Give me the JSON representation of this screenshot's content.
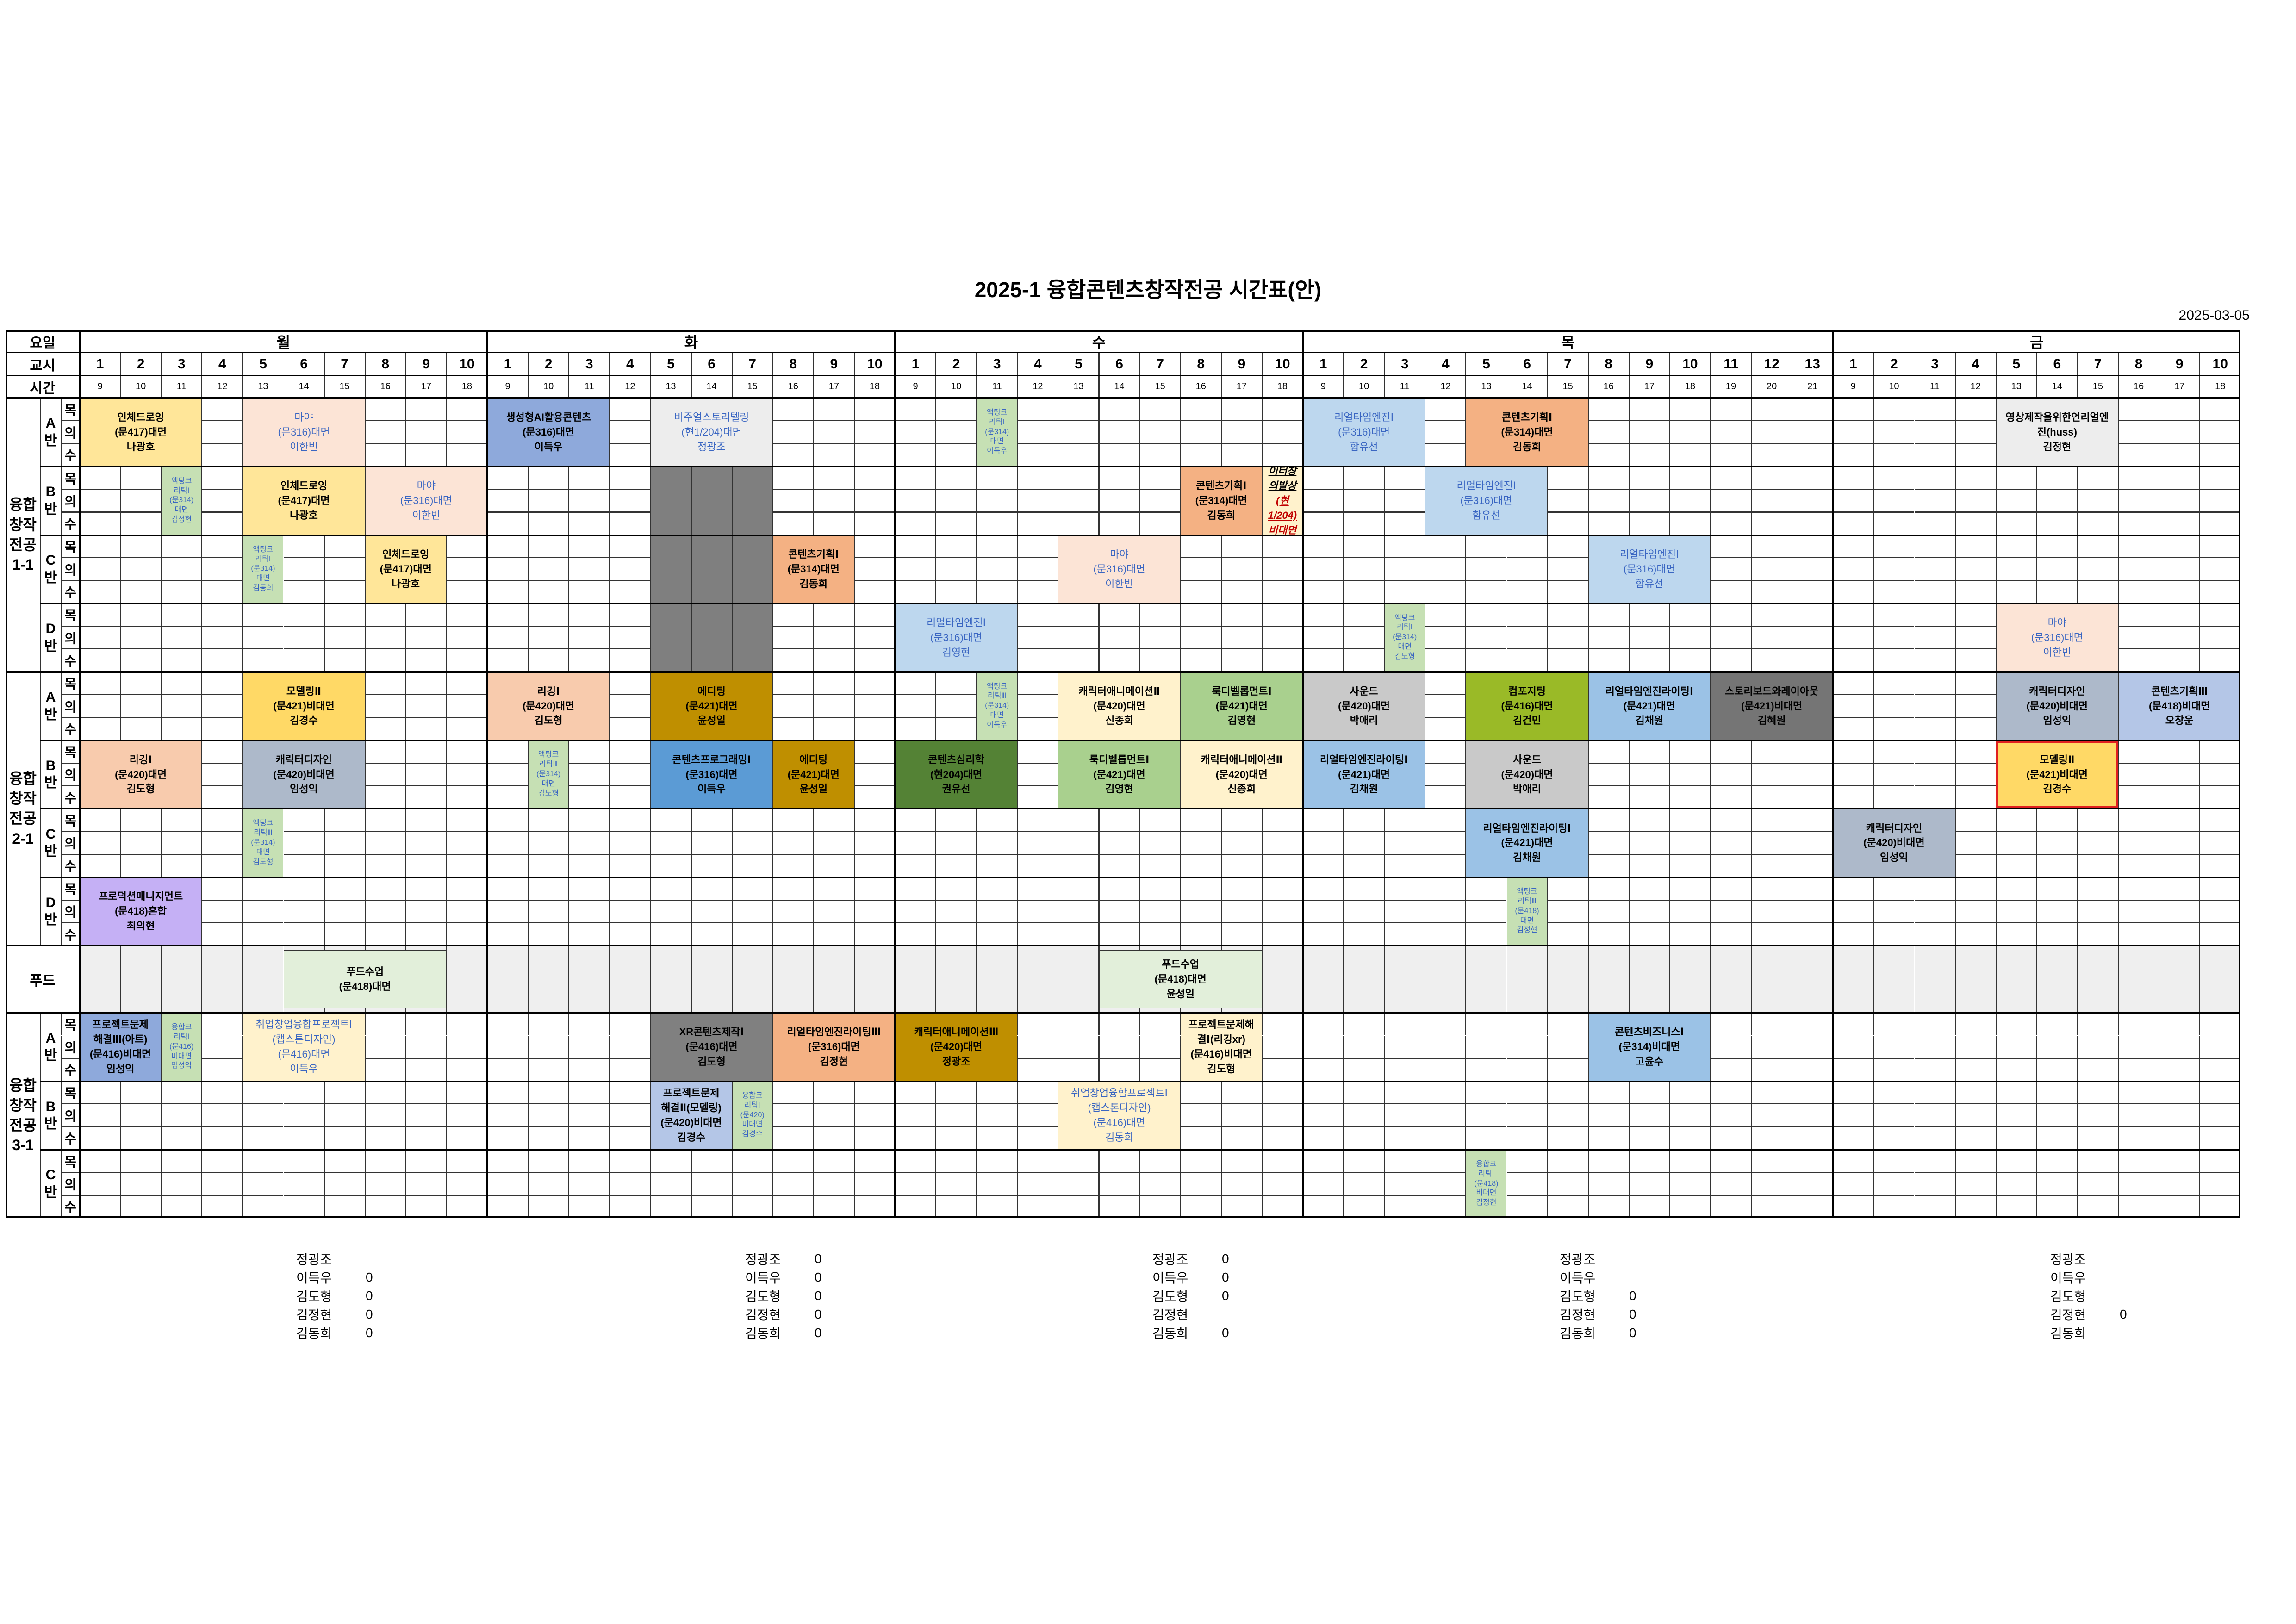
{
  "title": "2025-1 융합콘텐츠창작전공 시간표(안)",
  "date": "2025-03-05",
  "header": {
    "day_label": "요일",
    "period_label": "교시",
    "time_label": "시간"
  },
  "row_types": [
    "과목명",
    "강의실",
    "교수명"
  ],
  "days": [
    {
      "name": "월",
      "periods": 10
    },
    {
      "name": "화",
      "periods": 10
    },
    {
      "name": "수",
      "periods": 10
    },
    {
      "name": "목",
      "periods": 13
    },
    {
      "name": "금",
      "periods": 10
    }
  ],
  "times": [
    "9",
    "10",
    "11",
    "12",
    "13",
    "14",
    "15",
    "16",
    "17",
    "18",
    "19",
    "20",
    "21"
  ],
  "classes": [
    {
      "label": "융합\n창작\n전공\n1-1",
      "bans": [
        "A\n반",
        "B\n반",
        "C\n반",
        "D\n반"
      ]
    },
    {
      "label": "융합\n창작\n전공\n2-1",
      "bans": [
        "A\n반",
        "B\n반",
        "C\n반",
        "D\n반"
      ]
    },
    {
      "label": "푸드",
      "bans": []
    },
    {
      "label": "융합\n창작\n전공\n3-1",
      "bans": [
        "A\n반",
        "B\n반",
        "C\n반"
      ]
    }
  ],
  "colors": {
    "yellow": "#ffe699",
    "peach": "#fce4d6",
    "periwinkle": "#8ea9db",
    "lightgray": "#ededed",
    "greenlt": "#c6e0b4",
    "lightblue": "#bdd7ee",
    "orange": "#f4b183",
    "darkgray": "#808080",
    "salmon": "#f8cbad",
    "gold": "#bf8f00",
    "medblue": "#5b9bd5",
    "darkgreen": "#548235",
    "grayblue": "#adb9ca",
    "green": "#a9d08e",
    "gray": "#c9c9c9",
    "olive": "#9aba27",
    "blue2": "#9bc2e6",
    "dkgray2": "#757575",
    "lavender": "#c5b0f5",
    "foodgreen": "#e2efda",
    "foodbg": "#efefef",
    "yellow2": "#ffd966",
    "navyblue": "#b4c6e7",
    "palegold": "#fff2cc"
  },
  "blocks": [
    {
      "band": 0,
      "ban": 0,
      "day": 0,
      "p": 1,
      "span": 3,
      "color": "yellow",
      "lines": [
        "인체드로잉",
        "(문417)대면",
        "나광호"
      ]
    },
    {
      "band": 0,
      "ban": 0,
      "day": 0,
      "p": 5,
      "span": 3,
      "color": "peach",
      "blue": true,
      "lines": [
        "마야",
        "(문316)대면",
        "이한빈"
      ]
    },
    {
      "band": 0,
      "ban": 0,
      "day": 1,
      "p": 1,
      "span": 3,
      "color": "periwinkle",
      "lines": [
        "생성형AI활용콘텐츠",
        "(문316)대면",
        "이득우"
      ]
    },
    {
      "band": 0,
      "ban": 0,
      "day": 1,
      "p": 5,
      "span": 3,
      "color": "lightgray",
      "blue": true,
      "lines": [
        "비주얼스토리텔링",
        "(현1/204)대면",
        "정광조"
      ]
    },
    {
      "band": 0,
      "ban": 0,
      "day": 2,
      "p": 3,
      "span": 1,
      "color": "greenlt",
      "narrow": true,
      "blue": true,
      "lines": [
        "액팅크",
        "리틱Ⅰ",
        "(문314)",
        "대면",
        "이득우"
      ]
    },
    {
      "band": 0,
      "ban": 0,
      "day": 3,
      "p": 1,
      "span": 3,
      "color": "lightblue",
      "blue": true,
      "lines": [
        "리얼타임엔진Ⅰ",
        "(문316)대면",
        "함유선"
      ]
    },
    {
      "band": 0,
      "ban": 0,
      "day": 3,
      "p": 5,
      "span": 3,
      "color": "orange",
      "lines": [
        "콘텐츠기획Ⅰ",
        "(문314)대면",
        "김동희"
      ]
    },
    {
      "band": 0,
      "ban": 0,
      "day": 4,
      "p": 5,
      "span": 3,
      "color": "lightgray",
      "lines": [
        "영상제작을위한언리얼엔",
        "진(huss)",
        "김정현"
      ]
    },
    {
      "band": 0,
      "ban": 1,
      "day": 0,
      "p": 3,
      "span": 1,
      "color": "greenlt",
      "narrow": true,
      "blue": true,
      "lines": [
        "액팅크",
        "리틱Ⅰ",
        "(문314)",
        "대면",
        "김정현"
      ]
    },
    {
      "band": 0,
      "ban": 1,
      "day": 0,
      "p": 5,
      "span": 3,
      "color": "yellow",
      "lines": [
        "인체드로잉",
        "(문417)대면",
        "나광호"
      ]
    },
    {
      "band": 0,
      "ban": 1,
      "day": 0,
      "p": 8,
      "span": 3,
      "color": "peach",
      "blue": true,
      "lines": [
        "마야",
        "(문316)대면",
        "이한빈"
      ]
    },
    {
      "band": 0,
      "ban": 1,
      "day": 2,
      "p": 8,
      "span": 2,
      "color": "orange",
      "lines": [
        "콘텐츠기획Ⅰ",
        "(문314)대면",
        "김동희"
      ]
    },
    {
      "band": 0,
      "ban": 1,
      "day": 2,
      "p": 10,
      "span": 1,
      "color": "palegold",
      "special": true,
      "lines": [
        "크리에이터창의발상",
        "(현1/204) 비대면",
        "권유선"
      ]
    },
    {
      "band": 0,
      "ban": 1,
      "day": 3,
      "p": 4,
      "span": 3,
      "color": "lightblue",
      "blue": true,
      "lines": [
        "리얼타임엔진Ⅰ",
        "(문316)대면",
        "함유선"
      ]
    },
    {
      "band": 0,
      "ban": 2,
      "day": 0,
      "p": 5,
      "span": 1,
      "color": "greenlt",
      "narrow": true,
      "blue": true,
      "lines": [
        "액팅크",
        "리틱Ⅰ",
        "(문314)",
        "대면",
        "김동희"
      ]
    },
    {
      "band": 0,
      "ban": 2,
      "day": 0,
      "p": 8,
      "span": 2,
      "color": "yellow",
      "lines": [
        "인체드로잉",
        "(문417)대면",
        "나광호"
      ]
    },
    {
      "band": 0,
      "ban": 2,
      "day": 1,
      "p": 8,
      "span": 2,
      "color": "orange",
      "lines": [
        "콘텐츠기획Ⅰ",
        "(문314)대면",
        "김동희"
      ]
    },
    {
      "band": 0,
      "ban": 2,
      "day": 2,
      "p": 5,
      "span": 3,
      "color": "peach",
      "blue": true,
      "lines": [
        "마야",
        "(문316)대면",
        "이한빈"
      ]
    },
    {
      "band": 0,
      "ban": 2,
      "day": 3,
      "p": 8,
      "span": 3,
      "color": "lightblue",
      "blue": true,
      "lines": [
        "리얼타임엔진Ⅰ",
        "(문316)대면",
        "함유선"
      ]
    },
    {
      "band": 0,
      "ban": 3,
      "day": 2,
      "p": 1,
      "span": 3,
      "color": "lightblue",
      "blue": true,
      "lines": [
        "리얼타임엔진Ⅰ",
        "(문316)대면",
        "김영현"
      ]
    },
    {
      "band": 0,
      "ban": 3,
      "day": 3,
      "p": 3,
      "span": 1,
      "color": "greenlt",
      "narrow": true,
      "blue": true,
      "lines": [
        "액팅크",
        "리틱Ⅰ",
        "(문314)",
        "대면",
        "김도형"
      ]
    },
    {
      "band": 0,
      "ban": 3,
      "day": 4,
      "p": 5,
      "span": 3,
      "color": "peach",
      "blue": true,
      "lines": [
        "마야",
        "(문316)대면",
        "이한빈"
      ]
    },
    {
      "band": 1,
      "ban": 0,
      "day": 0,
      "p": 5,
      "span": 3,
      "color": "yellow2",
      "lines": [
        "모델링Ⅱ",
        "(문421)비대면",
        "김경수"
      ]
    },
    {
      "band": 1,
      "ban": 0,
      "day": 1,
      "p": 1,
      "span": 3,
      "color": "salmon",
      "lines": [
        "리깅Ⅰ",
        "(문420)대면",
        "김도형"
      ]
    },
    {
      "band": 1,
      "ban": 0,
      "day": 1,
      "p": 5,
      "span": 3,
      "color": "gold",
      "lines": [
        "에디팅",
        "(문421)대면",
        "윤성일"
      ]
    },
    {
      "band": 1,
      "ban": 0,
      "day": 2,
      "p": 3,
      "span": 1,
      "color": "greenlt",
      "narrow": true,
      "blue": true,
      "lines": [
        "액팅크",
        "리틱Ⅲ",
        "(문314)",
        "대면",
        "이득우"
      ]
    },
    {
      "band": 1,
      "ban": 0,
      "day": 2,
      "p": 5,
      "span": 3,
      "color": "palegold",
      "lines": [
        "캐릭터애니메이션Ⅱ",
        "(문420)대면",
        "신종희"
      ]
    },
    {
      "band": 1,
      "ban": 0,
      "day": 2,
      "p": 8,
      "span": 3,
      "color": "green",
      "lines": [
        "룩디벨롭먼트Ⅰ",
        "(문421)대면",
        "김영현"
      ]
    },
    {
      "band": 1,
      "ban": 0,
      "day": 3,
      "p": 1,
      "span": 3,
      "color": "gray",
      "lines": [
        "사운드",
        "(문420)대면",
        "박애리"
      ]
    },
    {
      "band": 1,
      "ban": 0,
      "day": 3,
      "p": 5,
      "span": 3,
      "color": "olive",
      "lines": [
        "컴포지팅",
        "(문416)대면",
        "김건민"
      ]
    },
    {
      "band": 1,
      "ban": 0,
      "day": 3,
      "p": 8,
      "span": 3,
      "color": "blue2",
      "lines": [
        "리얼타임엔진라이팅Ⅰ",
        "(문421)대면",
        "김채원"
      ]
    },
    {
      "band": 1,
      "ban": 0,
      "day": 3,
      "p": 11,
      "span": 3,
      "color": "dkgray2",
      "lines": [
        "스토리보드와레이아웃",
        "(문421)비대면",
        "김혜원"
      ]
    },
    {
      "band": 1,
      "ban": 0,
      "day": 4,
      "p": 5,
      "span": 3,
      "color": "grayblue",
      "lines": [
        "캐릭터디자인",
        "(문420)비대면",
        "임성익"
      ]
    },
    {
      "band": 1,
      "ban": 0,
      "day": 4,
      "p": 8,
      "span": 3,
      "color": "navyblue",
      "lines": [
        "콘텐츠기획Ⅲ",
        "(문418)비대면",
        "오창운"
      ]
    },
    {
      "band": 1,
      "ban": 1,
      "day": 0,
      "p": 1,
      "span": 3,
      "color": "salmon",
      "lines": [
        "리깅Ⅰ",
        "(문420)대면",
        "김도형"
      ]
    },
    {
      "band": 1,
      "ban": 1,
      "day": 0,
      "p": 5,
      "span": 3,
      "color": "grayblue",
      "lines": [
        "캐릭터디자인",
        "(문420)비대면",
        "임성익"
      ]
    },
    {
      "band": 1,
      "ban": 1,
      "day": 1,
      "p": 2,
      "span": 1,
      "color": "greenlt",
      "narrow": true,
      "blue": true,
      "lines": [
        "액팅크",
        "리틱Ⅲ",
        "(문314)",
        "대면",
        "김도형"
      ]
    },
    {
      "band": 1,
      "ban": 1,
      "day": 1,
      "p": 5,
      "span": 3,
      "color": "medblue",
      "lines": [
        "콘텐츠프로그래밍Ⅰ",
        "(문316)대면",
        "이득우"
      ]
    },
    {
      "band": 1,
      "ban": 1,
      "day": 1,
      "p": 8,
      "span": 2,
      "color": "gold",
      "lines": [
        "에디팅",
        "(문421)대면",
        "윤성일"
      ]
    },
    {
      "band": 1,
      "ban": 1,
      "day": 2,
      "p": 1,
      "span": 3,
      "color": "darkgreen",
      "lines": [
        "콘텐츠심리학",
        "(현204)대면",
        "권유선"
      ]
    },
    {
      "band": 1,
      "ban": 1,
      "day": 2,
      "p": 5,
      "span": 3,
      "color": "green",
      "lines": [
        "룩디벨롭먼트Ⅰ",
        "(문421)대면",
        "김영현"
      ]
    },
    {
      "band": 1,
      "ban": 1,
      "day": 2,
      "p": 8,
      "span": 3,
      "color": "palegold",
      "lines": [
        "캐릭터애니메이션Ⅱ",
        "(문420)대면",
        "신종희"
      ]
    },
    {
      "band": 1,
      "ban": 1,
      "day": 3,
      "p": 1,
      "span": 3,
      "color": "blue2",
      "lines": [
        "리얼타임엔진라이팅Ⅰ",
        "(문421)대면",
        "김채원"
      ]
    },
    {
      "band": 1,
      "ban": 1,
      "day": 3,
      "p": 5,
      "span": 3,
      "color": "gray",
      "lines": [
        "사운드",
        "(문420)대면",
        "박애리"
      ]
    },
    {
      "band": 1,
      "ban": 1,
      "day": 4,
      "p": 5,
      "span": 3,
      "color": "yellow2",
      "highlight": true,
      "lines": [
        "모델링Ⅱ",
        "(문421)비대면",
        "김경수"
      ]
    },
    {
      "band": 1,
      "ban": 2,
      "day": 0,
      "p": 5,
      "span": 1,
      "color": "greenlt",
      "narrow": true,
      "blue": true,
      "lines": [
        "액팅크",
        "리틱Ⅲ",
        "(문314)",
        "대면",
        "김도형"
      ]
    },
    {
      "band": 1,
      "ban": 2,
      "day": 3,
      "p": 5,
      "span": 3,
      "color": "blue2",
      "lines": [
        "리얼타임엔진라이팅Ⅰ",
        "(문421)대면",
        "김채원"
      ]
    },
    {
      "band": 1,
      "ban": 2,
      "day": 4,
      "p": 1,
      "span": 3,
      "color": "grayblue",
      "lines": [
        "캐릭터디자인",
        "(문420)비대면",
        "임성익"
      ]
    },
    {
      "band": 1,
      "ban": 3,
      "day": 0,
      "p": 1,
      "span": 3,
      "color": "lavender",
      "lines": [
        "프로덕션매니지먼트",
        "(문418)혼합",
        "최의현"
      ]
    },
    {
      "band": 1,
      "ban": 3,
      "day": 3,
      "p": 6,
      "span": 1,
      "color": "greenlt",
      "narrow": true,
      "blue": true,
      "lines": [
        "액팅크",
        "리틱Ⅲ",
        "(문418)",
        "대면",
        "김정현"
      ]
    },
    {
      "band": 2,
      "ban": 0,
      "day": 0,
      "p": 6,
      "span": 4,
      "color": "foodgreen",
      "lines": [
        "푸드수업",
        "(문418)대면"
      ]
    },
    {
      "band": 2,
      "ban": 0,
      "day": 2,
      "p": 6,
      "span": 4,
      "color": "foodgreen",
      "lines": [
        "푸드수업",
        "(문418)대면",
        "윤성일"
      ]
    },
    {
      "band": 3,
      "ban": 0,
      "day": 0,
      "p": 1,
      "span": 2,
      "color": "periwinkle",
      "lines": [
        "프로젝트문제",
        "해결Ⅲ(아트)",
        "(문416)비대면",
        "임성익"
      ]
    },
    {
      "band": 3,
      "ban": 0,
      "day": 0,
      "p": 3,
      "span": 1,
      "color": "greenlt",
      "narrow": true,
      "blue": true,
      "lines": [
        "융합크",
        "리틱Ⅰ",
        "(문416)",
        "비대면",
        "임성익"
      ]
    },
    {
      "band": 3,
      "ban": 0,
      "day": 0,
      "p": 5,
      "span": 3,
      "color": "palegold",
      "blue": true,
      "lines": [
        "취업창업융합프로젝트Ⅰ",
        "(캡스톤디자인)",
        "(문416)대면",
        "이득우"
      ]
    },
    {
      "band": 3,
      "ban": 0,
      "day": 1,
      "p": 5,
      "span": 3,
      "color": "darkgray",
      "lines": [
        "XR콘텐츠제작Ⅰ",
        "(문416)대면",
        "김도형"
      ]
    },
    {
      "band": 3,
      "ban": 0,
      "day": 1,
      "p": 8,
      "span": 3,
      "color": "orange",
      "lines": [
        "리얼타임엔진라이팅Ⅲ",
        "(문316)대면",
        "김정현"
      ]
    },
    {
      "band": 3,
      "ban": 0,
      "day": 2,
      "p": 1,
      "span": 3,
      "color": "gold",
      "lines": [
        "캐릭터애니메이션Ⅲ",
        "(문420)대면",
        "정광조"
      ]
    },
    {
      "band": 3,
      "ban": 0,
      "day": 2,
      "p": 8,
      "span": 2,
      "color": "palegold",
      "lines": [
        "프로젝트문제해",
        "결Ⅰ(리깅xr)",
        "(문416)비대면",
        "김도형"
      ]
    },
    {
      "band": 3,
      "ban": 0,
      "day": 3,
      "p": 8,
      "span": 3,
      "color": "blue2",
      "lines": [
        "콘텐츠비즈니스Ⅰ",
        "(문314)비대면",
        "고윤수"
      ]
    },
    {
      "band": 3,
      "ban": 1,
      "day": 1,
      "p": 5,
      "span": 2,
      "color": "navyblue",
      "lines": [
        "프로젝트문제",
        "해결Ⅱ(모델링)",
        "(문420)비대면",
        "김경수"
      ]
    },
    {
      "band": 3,
      "ban": 1,
      "day": 1,
      "p": 7,
      "span": 1,
      "color": "greenlt",
      "narrow": true,
      "blue": true,
      "lines": [
        "융합크",
        "리틱Ⅰ",
        "(문420)",
        "비대면",
        "김경수"
      ]
    },
    {
      "band": 3,
      "ban": 1,
      "day": 2,
      "p": 5,
      "span": 3,
      "color": "palegold",
      "blue": true,
      "lines": [
        "취업창업융합프로젝트Ⅰ",
        "(캡스톤디자인)",
        "(문416)대면",
        "김동희"
      ]
    },
    {
      "band": 3,
      "ban": 2,
      "day": 3,
      "p": 5,
      "span": 1,
      "color": "greenlt",
      "narrow": true,
      "blue": true,
      "lines": [
        "융합크",
        "리틱Ⅰ",
        "(문418)",
        "비대면",
        "김정현"
      ]
    }
  ],
  "footer": [
    {
      "col": 0,
      "rows": [
        [
          "정광조",
          ""
        ],
        [
          "이득우",
          "0"
        ],
        [
          "김도형",
          "0"
        ],
        [
          "김정현",
          "0"
        ],
        [
          "김동희",
          "0"
        ]
      ]
    },
    {
      "col": 1,
      "rows": [
        [
          "정광조",
          "0"
        ],
        [
          "이득우",
          "0"
        ],
        [
          "김도형",
          "0"
        ],
        [
          "김정현",
          "0"
        ],
        [
          "김동희",
          "0"
        ]
      ]
    },
    {
      "col": 2,
      "rows": [
        [
          "정광조",
          "0"
        ],
        [
          "이득우",
          "0"
        ],
        [
          "김도형",
          "0"
        ],
        [
          "김정현",
          ""
        ],
        [
          "김동희",
          "0"
        ]
      ]
    },
    {
      "col": 3,
      "rows": [
        [
          "정광조",
          ""
        ],
        [
          "이득우",
          ""
        ],
        [
          "김도형",
          "0"
        ],
        [
          "김정현",
          "0"
        ],
        [
          "김동희",
          "0"
        ]
      ]
    },
    {
      "col": 4,
      "rows": [
        [
          "정광조",
          ""
        ],
        [
          "이득우",
          ""
        ],
        [
          "김도형",
          ""
        ],
        [
          "김정현",
          "0"
        ],
        [
          "김동희",
          ""
        ]
      ]
    }
  ]
}
